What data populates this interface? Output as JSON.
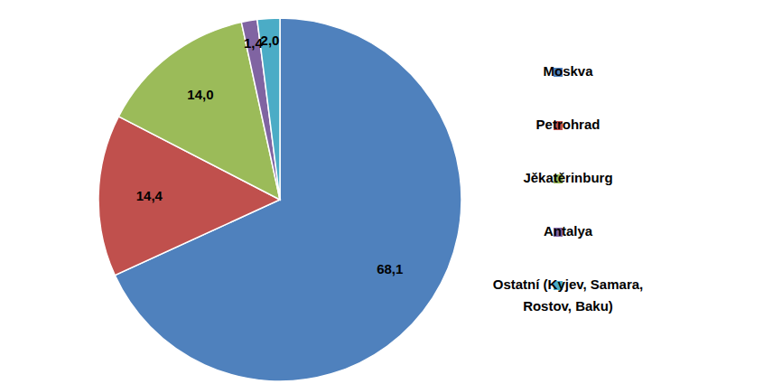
{
  "chart_data": {
    "type": "pie",
    "categories": [
      "Moskva",
      "Petrohrad",
      "Jěkatěrinburg",
      "Antalya",
      "Ostatní (Kyjev, Samara, Rostov, Baku)"
    ],
    "values": [
      68.1,
      14.4,
      14.0,
      1.4,
      2.0
    ],
    "value_labels": [
      "68,1",
      "14,4",
      "14,0",
      "1,4",
      "2,0"
    ],
    "colors": [
      "#4f81bd",
      "#c0504d",
      "#9bbb59",
      "#8064a2",
      "#4bacc6"
    ],
    "data_labels": true,
    "legend": "right"
  }
}
